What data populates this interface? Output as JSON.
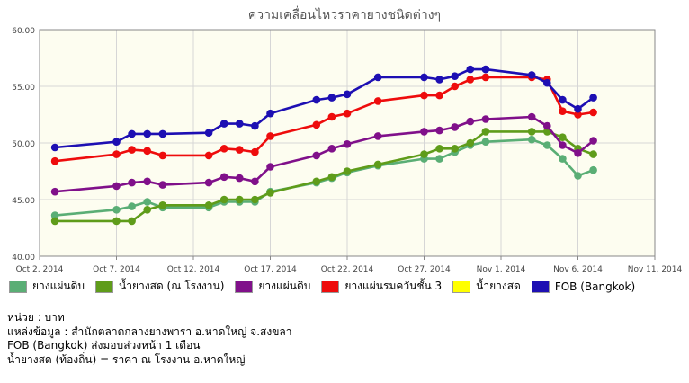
{
  "chart_data": {
    "type": "line",
    "title": "ความเคลื่อนไหวราคายางชนิดต่างๆ",
    "ylim": [
      40,
      60
    ],
    "yticks": [
      "40.00",
      "45.00",
      "50.00",
      "55.00",
      "60.00"
    ],
    "xlim": [
      "2014-10-02",
      "2014-11-11"
    ],
    "xticks": [
      "Oct 2, 2014",
      "Oct 7, 2014",
      "Oct 12, 2014",
      "Oct 17, 2014",
      "Oct 22, 2014",
      "Oct 27, 2014",
      "Nov 1, 2014",
      "Nov 6, 2014",
      "Nov 11, 2014"
    ],
    "xtick_dates": [
      "2014-10-02",
      "2014-10-07",
      "2014-10-12",
      "2014-10-17",
      "2014-10-22",
      "2014-10-27",
      "2014-11-01",
      "2014-11-06",
      "2014-11-11"
    ],
    "grid": true,
    "legend_position": "bottom",
    "series": [
      {
        "name": "ยางแผ่นดิบ",
        "color": "#5aae75",
        "points": [
          [
            "2014-10-03",
            43.6
          ],
          [
            "2014-10-07",
            44.1
          ],
          [
            "2014-10-08",
            44.4
          ],
          [
            "2014-10-09",
            44.8
          ],
          [
            "2014-10-10",
            44.3
          ],
          [
            "2014-10-13",
            44.3
          ],
          [
            "2014-10-14",
            44.8
          ],
          [
            "2014-10-15",
            44.8
          ],
          [
            "2014-10-16",
            44.8
          ],
          [
            "2014-10-17",
            45.7
          ],
          [
            "2014-10-20",
            46.5
          ],
          [
            "2014-10-21",
            46.9
          ],
          [
            "2014-10-22",
            47.4
          ],
          [
            "2014-10-24",
            48.0
          ],
          [
            "2014-10-27",
            48.6
          ],
          [
            "2014-10-28",
            48.6
          ],
          [
            "2014-10-29",
            49.2
          ],
          [
            "2014-10-30",
            49.8
          ],
          [
            "2014-10-31",
            50.1
          ],
          [
            "2014-11-03",
            50.3
          ],
          [
            "2014-11-04",
            49.8
          ],
          [
            "2014-11-05",
            48.6
          ],
          [
            "2014-11-06",
            47.1
          ],
          [
            "2014-11-07",
            47.6
          ]
        ]
      },
      {
        "name": "น้ำยางสด (ณ โรงงาน)",
        "color": "#5f9c1a",
        "points": [
          [
            "2014-10-03",
            43.1
          ],
          [
            "2014-10-07",
            43.1
          ],
          [
            "2014-10-08",
            43.1
          ],
          [
            "2014-10-09",
            44.1
          ],
          [
            "2014-10-10",
            44.5
          ],
          [
            "2014-10-13",
            44.5
          ],
          [
            "2014-10-14",
            45.0
          ],
          [
            "2014-10-15",
            45.0
          ],
          [
            "2014-10-16",
            45.0
          ],
          [
            "2014-10-17",
            45.6
          ],
          [
            "2014-10-20",
            46.6
          ],
          [
            "2014-10-21",
            47.0
          ],
          [
            "2014-10-22",
            47.5
          ],
          [
            "2014-10-24",
            48.1
          ],
          [
            "2014-10-27",
            49.0
          ],
          [
            "2014-10-28",
            49.5
          ],
          [
            "2014-10-29",
            49.5
          ],
          [
            "2014-10-30",
            50.0
          ],
          [
            "2014-10-31",
            51.0
          ],
          [
            "2014-11-03",
            51.0
          ],
          [
            "2014-11-04",
            51.0
          ],
          [
            "2014-11-05",
            50.5
          ],
          [
            "2014-11-06",
            49.5
          ],
          [
            "2014-11-07",
            49.0
          ]
        ]
      },
      {
        "name": "ยางแผ่นดิบ",
        "color": "#80108a",
        "points": [
          [
            "2014-10-03",
            45.7
          ],
          [
            "2014-10-07",
            46.2
          ],
          [
            "2014-10-08",
            46.5
          ],
          [
            "2014-10-09",
            46.6
          ],
          [
            "2014-10-10",
            46.3
          ],
          [
            "2014-10-13",
            46.5
          ],
          [
            "2014-10-14",
            47.0
          ],
          [
            "2014-10-15",
            46.9
          ],
          [
            "2014-10-16",
            46.6
          ],
          [
            "2014-10-17",
            47.9
          ],
          [
            "2014-10-20",
            48.9
          ],
          [
            "2014-10-21",
            49.5
          ],
          [
            "2014-10-22",
            49.9
          ],
          [
            "2014-10-24",
            50.6
          ],
          [
            "2014-10-27",
            51.0
          ],
          [
            "2014-10-28",
            51.1
          ],
          [
            "2014-10-29",
            51.4
          ],
          [
            "2014-10-30",
            51.9
          ],
          [
            "2014-10-31",
            52.1
          ],
          [
            "2014-11-03",
            52.3
          ],
          [
            "2014-11-04",
            51.5
          ],
          [
            "2014-11-05",
            49.8
          ],
          [
            "2014-11-06",
            49.1
          ],
          [
            "2014-11-07",
            50.2
          ]
        ]
      },
      {
        "name": "ยางแผ่นรมควันชั้น 3",
        "color": "#ee0c0c",
        "points": [
          [
            "2014-10-03",
            48.4
          ],
          [
            "2014-10-07",
            49.0
          ],
          [
            "2014-10-08",
            49.4
          ],
          [
            "2014-10-09",
            49.3
          ],
          [
            "2014-10-10",
            48.9
          ],
          [
            "2014-10-13",
            48.9
          ],
          [
            "2014-10-14",
            49.5
          ],
          [
            "2014-10-15",
            49.4
          ],
          [
            "2014-10-16",
            49.2
          ],
          [
            "2014-10-17",
            50.6
          ],
          [
            "2014-10-20",
            51.6
          ],
          [
            "2014-10-21",
            52.3
          ],
          [
            "2014-10-22",
            52.6
          ],
          [
            "2014-10-24",
            53.7
          ],
          [
            "2014-10-27",
            54.2
          ],
          [
            "2014-10-28",
            54.2
          ],
          [
            "2014-10-29",
            55.0
          ],
          [
            "2014-10-30",
            55.6
          ],
          [
            "2014-10-31",
            55.8
          ],
          [
            "2014-11-03",
            55.8
          ],
          [
            "2014-11-04",
            55.6
          ],
          [
            "2014-11-05",
            52.8
          ],
          [
            "2014-11-06",
            52.5
          ],
          [
            "2014-11-07",
            52.7
          ]
        ]
      },
      {
        "name": "น้ำยางสด",
        "color": "#ffff00",
        "points": []
      },
      {
        "name": "FOB (Bangkok)",
        "color": "#1d0fb3",
        "points": [
          [
            "2014-10-03",
            49.6
          ],
          [
            "2014-10-07",
            50.1
          ],
          [
            "2014-10-08",
            50.8
          ],
          [
            "2014-10-09",
            50.8
          ],
          [
            "2014-10-10",
            50.8
          ],
          [
            "2014-10-13",
            50.9
          ],
          [
            "2014-10-14",
            51.7
          ],
          [
            "2014-10-15",
            51.7
          ],
          [
            "2014-10-16",
            51.5
          ],
          [
            "2014-10-17",
            52.6
          ],
          [
            "2014-10-20",
            53.8
          ],
          [
            "2014-10-21",
            54.0
          ],
          [
            "2014-10-22",
            54.3
          ],
          [
            "2014-10-24",
            55.8
          ],
          [
            "2014-10-27",
            55.8
          ],
          [
            "2014-10-28",
            55.6
          ],
          [
            "2014-10-29",
            55.9
          ],
          [
            "2014-10-30",
            56.5
          ],
          [
            "2014-10-31",
            56.5
          ],
          [
            "2014-11-03",
            56.0
          ],
          [
            "2014-11-04",
            55.3
          ],
          [
            "2014-11-05",
            53.8
          ],
          [
            "2014-11-06",
            53.0
          ],
          [
            "2014-11-07",
            54.0
          ]
        ]
      }
    ]
  },
  "notes": [
    "หน่วย : บาท",
    "แหล่งข้อมูล : สำนักตลาดกลางยางพารา อ.หาดใหญ่ จ.สงขลา",
    "FOB (Bangkok) ส่งมอบล่วงหน้า 1 เดือน",
    "น้ำยางสด (ท้องถิ่น) = ราคา ณ โรงงาน อ.หาดใหญ่"
  ]
}
